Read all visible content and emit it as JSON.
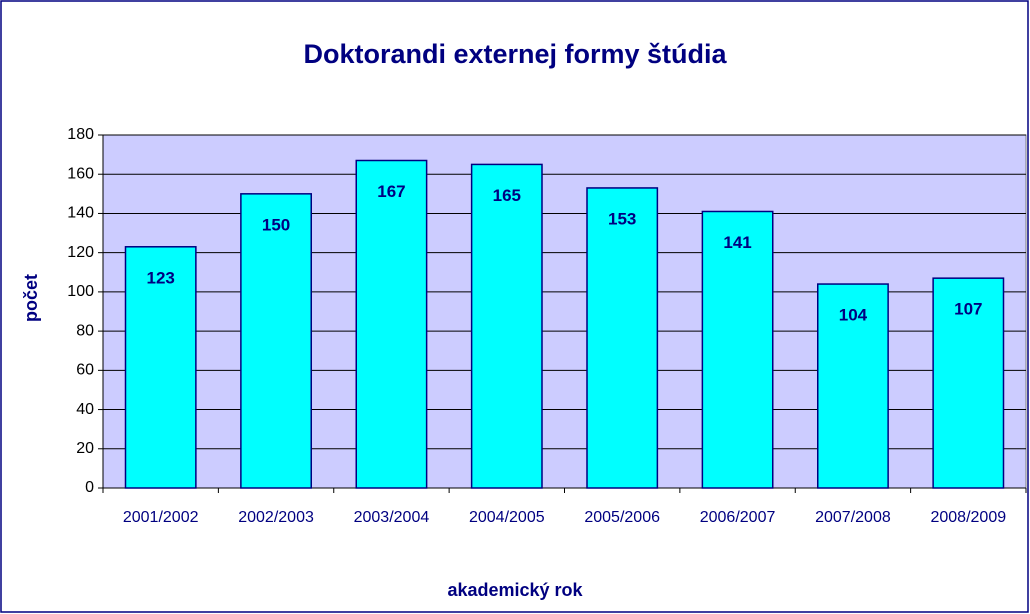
{
  "chart_data": {
    "type": "bar",
    "title": "Doktorandi externej formy štúdia",
    "x_label": "akademický rok",
    "y_label": "počet",
    "categories": [
      "2001/2002",
      "2002/2003",
      "2003/2004",
      "2004/2005",
      "2005/2006",
      "2006/2007",
      "2007/2008",
      "2008/2009"
    ],
    "values": [
      123,
      150,
      167,
      165,
      153,
      141,
      104,
      107
    ],
    "color": "#00ffff",
    "edge_color": "#000080",
    "plot_background": "#ccccff",
    "ylim": [
      0,
      180
    ],
    "yticks": [
      0,
      20,
      40,
      60,
      80,
      100,
      120,
      140,
      160,
      180
    ],
    "grid": true
  }
}
